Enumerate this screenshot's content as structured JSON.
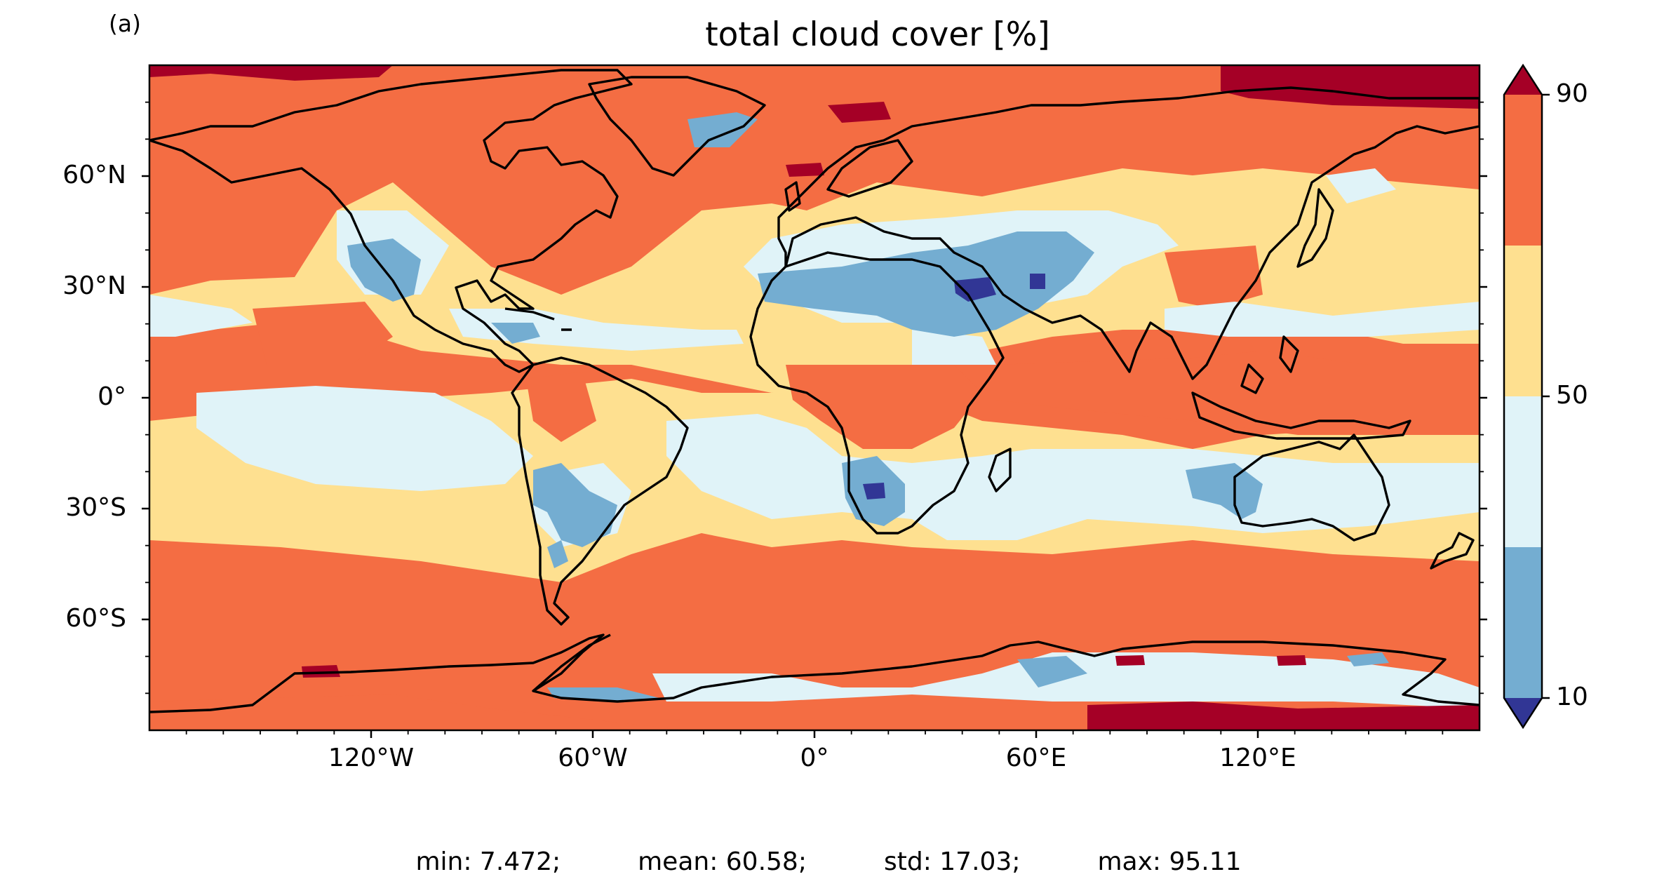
{
  "panel_label": "(a)",
  "title": "total cloud cover [%]",
  "chart_data": {
    "type": "heatmap",
    "title": "total cloud cover [%]",
    "x_ticks": [
      "120°W",
      "60°W",
      "0°",
      "60°E",
      "120°E"
    ],
    "x_tick_values": [
      -120,
      -60,
      0,
      60,
      120
    ],
    "y_ticks": [
      "60°N",
      "30°N",
      "0°",
      "30°S",
      "60°S"
    ],
    "y_tick_values": [
      60,
      30,
      0,
      -30,
      -60
    ],
    "xlim": [
      -180,
      180
    ],
    "ylim": [
      -90,
      90
    ],
    "colorbar": {
      "ticks": [
        "90",
        "50",
        "10"
      ],
      "tick_values": [
        90,
        50,
        10
      ],
      "levels": [
        10,
        30,
        50,
        70,
        90
      ],
      "extend": "both",
      "colors": [
        "#313695",
        "#74add1",
        "#e0f3f8",
        "#fee090",
        "#f46d43",
        "#a50026"
      ]
    },
    "stats": {
      "min": "7.472",
      "mean": "60.58",
      "std": "17.03",
      "max": "95.11"
    }
  },
  "stats_text": {
    "min": "min: 7.472;",
    "mean": "mean: 60.58;",
    "std": "std: 17.03;",
    "max": "max: 95.11"
  }
}
